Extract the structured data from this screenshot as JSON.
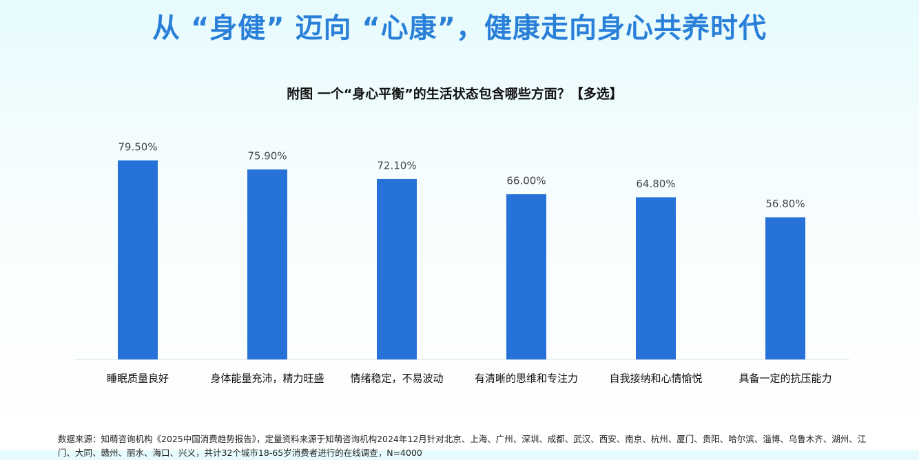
{
  "slide_title": "从 “身健” 迈向 “心康”，健康走向身心共养时代",
  "chart_data": {
    "type": "bar",
    "title": "附图 一个“身心平衡”的生活状态包含哪些方面？【多选】",
    "categories": [
      "睡眠质量良好",
      "身体能量充沛，精力旺盛",
      "情绪稳定，不易波动",
      "有清晰的思维和专注力",
      "自我接纳和心情愉悦",
      "具备一定的抗压能力"
    ],
    "values": [
      79.5,
      75.9,
      72.1,
      66.0,
      64.8,
      56.8
    ],
    "value_labels": [
      "79.50%",
      "75.90%",
      "72.10%",
      "66.00%",
      "64.80%",
      "56.80%"
    ],
    "color": "#2672d9",
    "ylim": [
      0,
      100
    ]
  },
  "source": "数据来源：知萌咨询机构《2025中国消费趋势报告》，定量资料来源于知萌咨询机构2024年12月针对北京、上海、广州、深圳、成都、武汉、西安、南京、杭州、厦门、贵阳、哈尔滨、淄博、乌鲁木齐、湖州、江门、大同、赣州、丽水、海口、兴义，共计32个城市18-65岁消费者进行的在线调查，N=4000"
}
